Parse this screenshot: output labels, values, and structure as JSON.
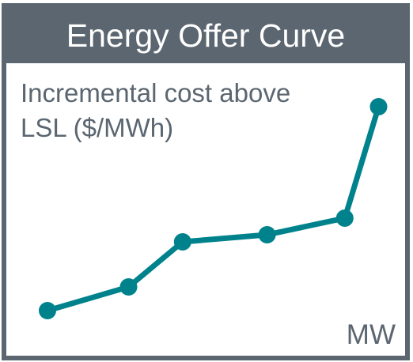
{
  "chart_data": {
    "type": "line",
    "title": "Energy Offer Curve",
    "ylabel_lines": [
      "Incremental cost above",
      "LSL ($/MWh)"
    ],
    "xlabel": "MW",
    "grid": false,
    "legend": "none",
    "xlim": [
      0,
      100
    ],
    "ylim": [
      0,
      100
    ],
    "series": [
      {
        "x": [
          0,
          24,
          40,
          65,
          88,
          98
        ],
        "y": [
          4,
          14,
          33,
          36,
          43,
          90
        ]
      }
    ]
  },
  "colors": {
    "frame": "#5b6670",
    "title_text": "#ffffff",
    "label_text": "#5b6670",
    "line": "#00828c"
  }
}
